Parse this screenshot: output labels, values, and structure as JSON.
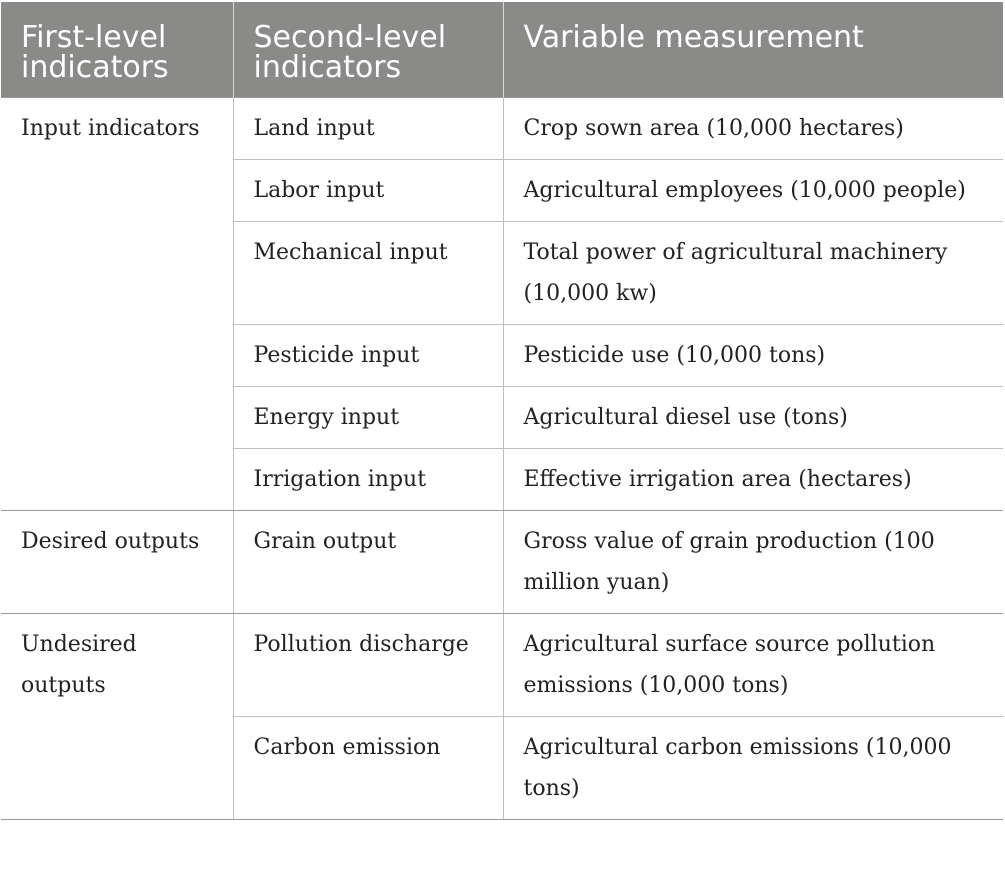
{
  "table": {
    "headers": [
      "First-level indicators",
      "Second-level indicators",
      "Variable measurement"
    ],
    "groups": [
      {
        "first_level": "Input indicators",
        "rows": [
          {
            "second_level": "Land input",
            "measurement": "Crop sown area (10,000 hectares)"
          },
          {
            "second_level": "Labor input",
            "measurement": "Agricultural employees (10,000 people)"
          },
          {
            "second_level": "Mechanical input",
            "measurement": "Total power of agricultural machinery (10,000 kw)"
          },
          {
            "second_level": "Pesticide input",
            "measurement": "Pesticide use (10,000 tons)"
          },
          {
            "second_level": "Energy input",
            "measurement": "Agricultural diesel use (tons)"
          },
          {
            "second_level": "Irrigation input",
            "measurement": "Effective irrigation area (hectares)"
          }
        ]
      },
      {
        "first_level": "Desired outputs",
        "rows": [
          {
            "second_level": "Grain output",
            "measurement": "Gross value of grain production (100 million yuan)"
          }
        ]
      },
      {
        "first_level": "Undesired outputs",
        "rows": [
          {
            "second_level": "Pollution discharge",
            "measurement": "Agricultural surface source pollution emissions (10,000 tons)"
          },
          {
            "second_level": "Carbon emission",
            "measurement": "Agricultural carbon emissions (10,000 tons)"
          }
        ]
      }
    ]
  }
}
